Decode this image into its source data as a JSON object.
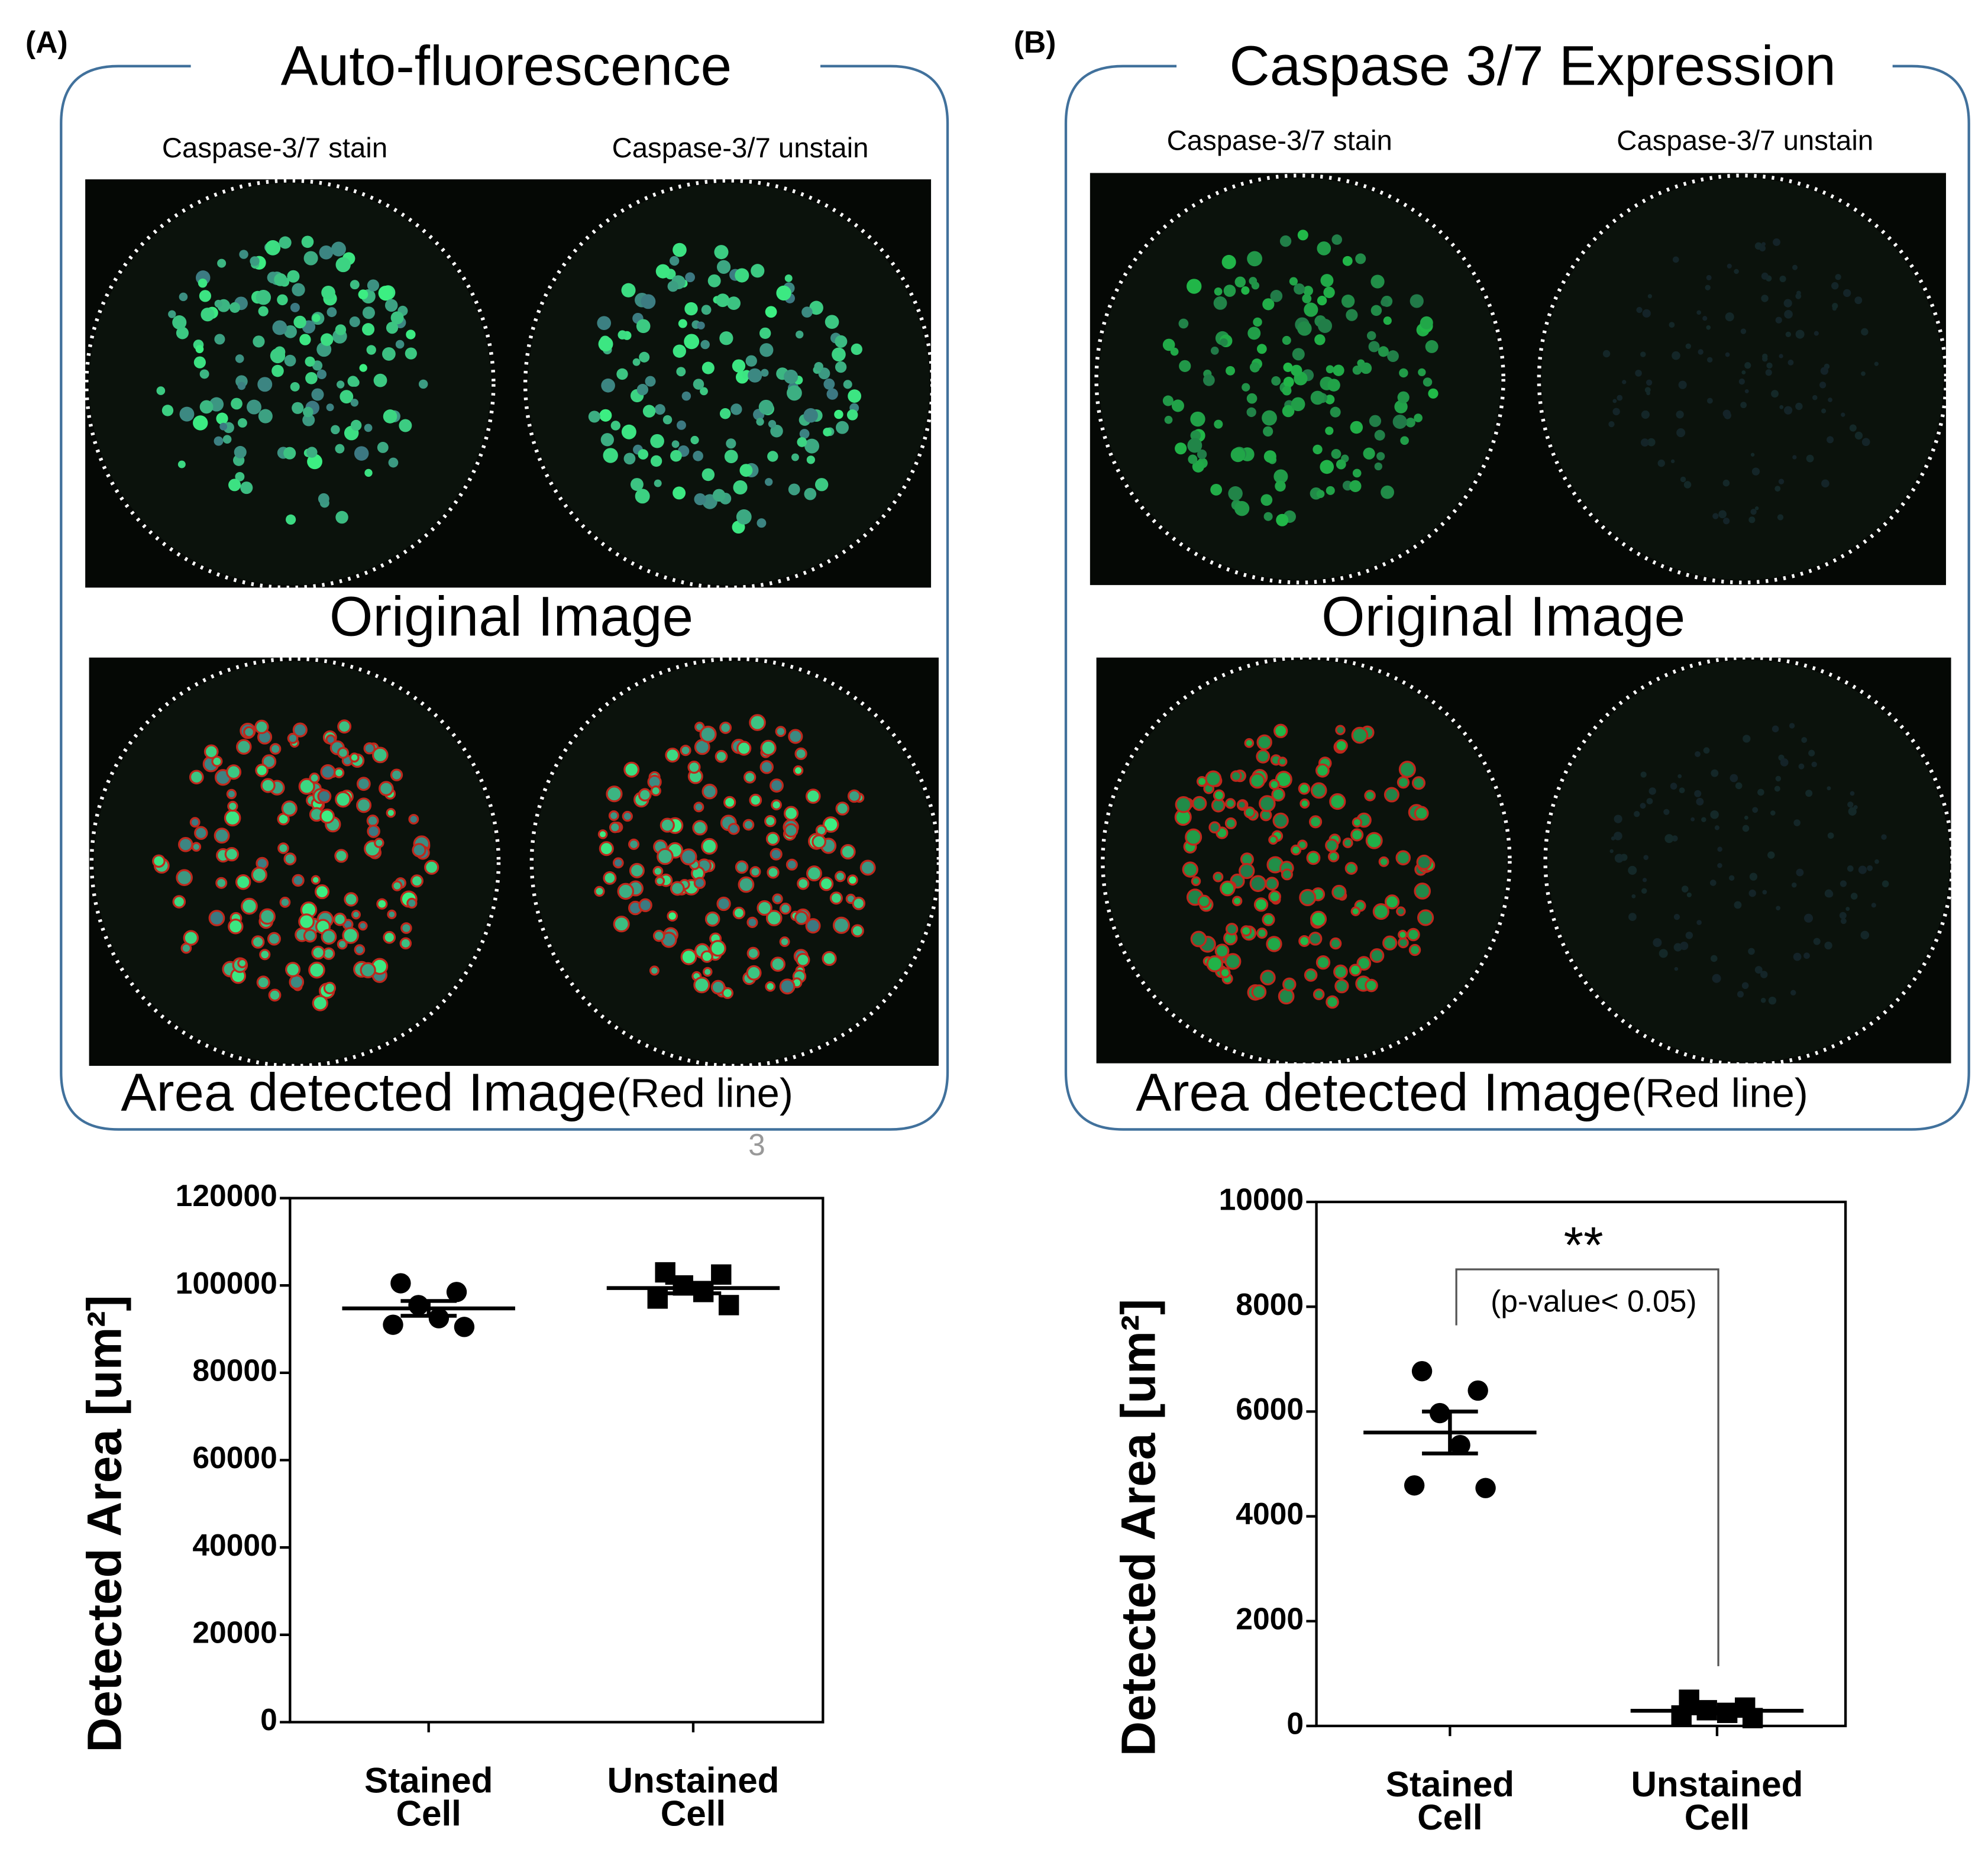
{
  "page_number": "3",
  "panels": [
    {
      "label": "(A)",
      "title": "Auto-fluorescence",
      "columns": [
        "Caspase-3/7 stain",
        "Caspase-3/7 unstain"
      ],
      "row1": "Original Image",
      "row2": "Area detected Image",
      "row2_note": "(Red line)"
    },
    {
      "label": "(B)",
      "title": "Caspase 3/7 Expression",
      "columns": [
        "Caspase-3/7 stain",
        "Caspase-3/7 unstain"
      ],
      "row1": "Original Image",
      "row2": "Area detected Image",
      "row2_note": "(Red line)"
    }
  ],
  "chart_data": [
    {
      "type": "dot",
      "ylabel": "Detected Area [um²]",
      "categories": [
        "Stained Cell",
        "Unstained Cell"
      ],
      "points": [
        [
          100500,
          98500,
          95500,
          92500,
          91000,
          90500
        ],
        [
          103000,
          102500,
          100000,
          98500,
          97000,
          95500
        ]
      ],
      "mean": [
        94750,
        99400
      ],
      "sem": [
        1700,
        1200
      ],
      "markers": [
        "circle",
        "square"
      ],
      "color": "#000000",
      "ylim": [
        0,
        120000
      ],
      "yticks": [
        0,
        20000,
        40000,
        60000,
        80000,
        100000,
        120000
      ]
    },
    {
      "type": "dot",
      "ylabel": "Detected Area [um²]",
      "categories": [
        "Stained Cell",
        "Unstained Cell"
      ],
      "points": [
        [
          6770,
          6400,
          5970,
          5360,
          4590,
          4540
        ],
        [
          500,
          350,
          300,
          250,
          200,
          150
        ]
      ],
      "mean": [
        5600,
        290
      ],
      "sem": [
        400,
        50
      ],
      "markers": [
        "circle",
        "square"
      ],
      "color": "#000000",
      "ylim": [
        0,
        10000
      ],
      "yticks": [
        0,
        2000,
        4000,
        6000,
        8000,
        10000
      ],
      "significance": "**",
      "annotation": "(p-value< 0.05)"
    }
  ]
}
